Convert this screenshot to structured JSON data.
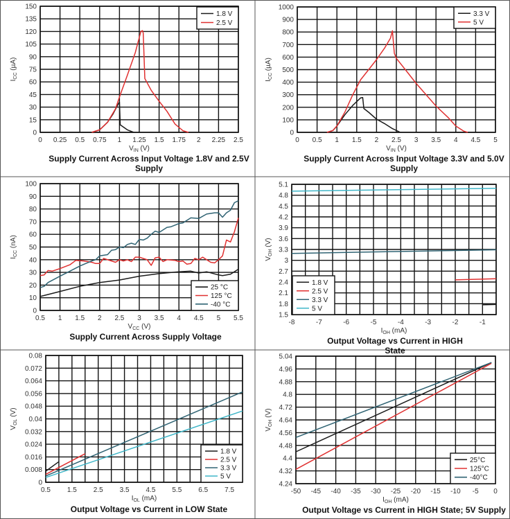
{
  "chart_data": [
    {
      "type": "line",
      "title": "Supply Current Across Input Voltage 1.8V and 2.5V Supply",
      "xlabel": {
        "base": "V",
        "sub": "IN",
        "rest": " (V)"
      },
      "ylabel": {
        "base": "I",
        "sub": "CC",
        "rest": " (µA)"
      },
      "xlim": [
        0,
        2.5
      ],
      "ylim": [
        0,
        150
      ],
      "xticks": [
        "0",
        "0.25",
        "0.5",
        "0.75",
        "1",
        "1.25",
        "1.5",
        "1.75",
        "2",
        "2.25",
        "2.5"
      ],
      "yticks": [
        "0",
        "15",
        "30",
        "45",
        "60",
        "75",
        "90",
        "105",
        "120",
        "135",
        "150"
      ],
      "grid": true,
      "xgrid_step": 0.25,
      "ygrid_step": 15,
      "legend": "top-right",
      "series": [
        {
          "name": "1.8 V",
          "color": "#1a1a1a",
          "points": [
            [
              0,
              0
            ],
            [
              0.65,
              0
            ],
            [
              0.75,
              3
            ],
            [
              0.85,
              12
            ],
            [
              0.92,
              22
            ],
            [
              0.98,
              33
            ],
            [
              1.0,
              36
            ],
            [
              1.01,
              9
            ],
            [
              1.1,
              3
            ],
            [
              1.18,
              0
            ]
          ]
        },
        {
          "name": "2.5 V",
          "color": "#e03030",
          "points": [
            [
              0.65,
              0
            ],
            [
              0.75,
              3
            ],
            [
              0.85,
              12
            ],
            [
              0.95,
              28
            ],
            [
              1.0,
              42
            ],
            [
              1.1,
              68
            ],
            [
              1.2,
              95
            ],
            [
              1.27,
              120
            ],
            [
              1.29,
              121
            ],
            [
              1.3,
              118
            ],
            [
              1.32,
              64
            ],
            [
              1.4,
              50
            ],
            [
              1.5,
              37
            ],
            [
              1.6,
              25
            ],
            [
              1.7,
              10
            ],
            [
              1.8,
              2
            ],
            [
              1.87,
              0
            ]
          ]
        }
      ]
    },
    {
      "type": "line",
      "title": "Supply Current Across Input Voltage 3.3V and 5.0V Supply",
      "xlabel": {
        "base": "V",
        "sub": "IN",
        "rest": " (V)"
      },
      "ylabel": {
        "base": "I",
        "sub": "CC",
        "rest": " (µA)"
      },
      "xlim": [
        0,
        5
      ],
      "ylim": [
        0,
        1000
      ],
      "xticks": [
        "0",
        "0.5",
        "1",
        "1.5",
        "2",
        "2.5",
        "3",
        "3.5",
        "4",
        "4.5",
        "5"
      ],
      "yticks": [
        "0",
        "100",
        "200",
        "300",
        "400",
        "500",
        "600",
        "700",
        "800",
        "900",
        "1000"
      ],
      "grid": true,
      "xgrid_step": 0.5,
      "ygrid_step": 100,
      "legend": "top-right",
      "series": [
        {
          "name": "3.3 V",
          "color": "#1a1a1a",
          "points": [
            [
              0.75,
              0
            ],
            [
              0.9,
              15
            ],
            [
              1.0,
              50
            ],
            [
              1.2,
              140
            ],
            [
              1.4,
              215
            ],
            [
              1.6,
              275
            ],
            [
              1.65,
              278
            ],
            [
              1.68,
              190
            ],
            [
              1.8,
              160
            ],
            [
              2.0,
              105
            ],
            [
              2.2,
              70
            ],
            [
              2.4,
              30
            ],
            [
              2.6,
              0
            ]
          ]
        },
        {
          "name": "5 V",
          "color": "#e03030",
          "points": [
            [
              0.75,
              0
            ],
            [
              0.9,
              15
            ],
            [
              1.0,
              50
            ],
            [
              1.2,
              160
            ],
            [
              1.4,
              300
            ],
            [
              1.6,
              420
            ],
            [
              1.8,
              500
            ],
            [
              2.0,
              580
            ],
            [
              2.2,
              670
            ],
            [
              2.35,
              750
            ],
            [
              2.4,
              810
            ],
            [
              2.45,
              630
            ],
            [
              2.5,
              590
            ],
            [
              2.8,
              470
            ],
            [
              3.0,
              390
            ],
            [
              3.5,
              210
            ],
            [
              3.8,
              120
            ],
            [
              4.0,
              50
            ],
            [
              4.2,
              10
            ],
            [
              4.3,
              0
            ]
          ]
        }
      ]
    },
    {
      "type": "line",
      "title": "Supply Current Across Supply Voltage",
      "xlabel": {
        "base": "V",
        "sub": "CC",
        "rest": " (V)"
      },
      "ylabel": {
        "base": "I",
        "sub": "CC",
        "rest": " (nA)"
      },
      "xlim": [
        0.5,
        5.5
      ],
      "ylim": [
        0,
        100
      ],
      "xticks": [
        "0.5",
        "1",
        "1.5",
        "2",
        "2.5",
        "3",
        "3.5",
        "4",
        "4.5",
        "5",
        "5.5"
      ],
      "yticks": [
        "0",
        "10",
        "20",
        "30",
        "40",
        "50",
        "60",
        "70",
        "80",
        "90",
        "100"
      ],
      "grid": true,
      "xgrid_step": 0.5,
      "ygrid_step": 10,
      "legend": "bottom-right",
      "series": [
        {
          "name": "25 °C",
          "color": "#1a1a1a",
          "points": [
            [
              0.5,
              11
            ],
            [
              1,
              15
            ],
            [
              1.5,
              19
            ],
            [
              2,
              22
            ],
            [
              2.5,
              24
            ],
            [
              3,
              27
            ],
            [
              3.5,
              29
            ],
            [
              4,
              30.5
            ],
            [
              4.3,
              31
            ],
            [
              4.5,
              29.5
            ],
            [
              4.7,
              30.5
            ],
            [
              5,
              28
            ],
            [
              5.1,
              27.5
            ],
            [
              5.3,
              28.5
            ],
            [
              5.5,
              32.5
            ]
          ]
        },
        {
          "name": "125 °C",
          "color": "#e03030",
          "points": [
            [
              0.5,
              27.5
            ],
            [
              0.6,
              28
            ],
            [
              0.7,
              31.5
            ],
            [
              0.8,
              31
            ],
            [
              1,
              33
            ],
            [
              1.25,
              36
            ],
            [
              1.4,
              39.5
            ],
            [
              1.6,
              39
            ],
            [
              1.8,
              38
            ],
            [
              1.9,
              37
            ],
            [
              2.0,
              37
            ],
            [
              2.1,
              41
            ],
            [
              2.3,
              39
            ],
            [
              2.4,
              38
            ],
            [
              2.5,
              40
            ],
            [
              2.6,
              39
            ],
            [
              2.7,
              40
            ],
            [
              2.8,
              38.5
            ],
            [
              2.9,
              42
            ],
            [
              3.0,
              42
            ],
            [
              3.1,
              41
            ],
            [
              3.2,
              40
            ],
            [
              3.3,
              35.5
            ],
            [
              3.4,
              41.5
            ],
            [
              3.5,
              42
            ],
            [
              3.6,
              38.5
            ],
            [
              3.7,
              40
            ],
            [
              3.9,
              39.5
            ],
            [
              4.0,
              38.5
            ],
            [
              4.1,
              39
            ],
            [
              4.2,
              36.5
            ],
            [
              4.3,
              37
            ],
            [
              4.4,
              41
            ],
            [
              4.5,
              40
            ],
            [
              4.6,
              42
            ],
            [
              4.8,
              38
            ],
            [
              4.9,
              37.5
            ],
            [
              5.0,
              40
            ],
            [
              5.1,
              43
            ],
            [
              5.2,
              55.5
            ],
            [
              5.3,
              54
            ],
            [
              5.4,
              62
            ],
            [
              5.5,
              73
            ]
          ]
        },
        {
          "name": "-40 °C",
          "color": "#2f6373",
          "points": [
            [
              0.5,
              18
            ],
            [
              0.6,
              19
            ],
            [
              0.7,
              22
            ],
            [
              1.0,
              27
            ],
            [
              1.25,
              31
            ],
            [
              1.5,
              35
            ],
            [
              1.8,
              39
            ],
            [
              1.9,
              40
            ],
            [
              2.0,
              43
            ],
            [
              2.2,
              44
            ],
            [
              2.3,
              47.5
            ],
            [
              2.4,
              48
            ],
            [
              2.5,
              50
            ],
            [
              2.6,
              49.5
            ],
            [
              2.7,
              52
            ],
            [
              2.8,
              53
            ],
            [
              2.9,
              52
            ],
            [
              3.0,
              56
            ],
            [
              3.1,
              55.5
            ],
            [
              3.2,
              57
            ],
            [
              3.3,
              60
            ],
            [
              3.4,
              62.5
            ],
            [
              3.5,
              61.5
            ],
            [
              3.7,
              65.5
            ],
            [
              3.8,
              66
            ],
            [
              4.0,
              68.5
            ],
            [
              4.1,
              69
            ],
            [
              4.3,
              73
            ],
            [
              4.5,
              72.5
            ],
            [
              4.7,
              76
            ],
            [
              4.9,
              77
            ],
            [
              5.0,
              77
            ],
            [
              5.1,
              73.5
            ],
            [
              5.2,
              77
            ],
            [
              5.3,
              79
            ],
            [
              5.4,
              85
            ],
            [
              5.5,
              86.5
            ]
          ]
        }
      ]
    },
    {
      "type": "line",
      "title": "Output Voltage vs Current in HIGH State",
      "xlabel": {
        "base": "I",
        "sub": "OH",
        "rest": " (mA)"
      },
      "ylabel": {
        "base": "V",
        "sub": "OH",
        "rest": " (V)"
      },
      "xlim": [
        -8,
        -0.5
      ],
      "ylim": [
        1.5,
        5.1
      ],
      "xticks": [
        "-8",
        "-7",
        "-6",
        "-5",
        "-4",
        "-3",
        "-2",
        "-1"
      ],
      "xtick_values": [
        -8,
        -7,
        -6,
        -5,
        -4,
        -3,
        -2,
        -1
      ],
      "yticks": [
        "1.5",
        "1.8",
        "2.1",
        "2.4",
        "2.7",
        "3",
        "3.3",
        "3.6",
        "3.9",
        "4.2",
        "4.5",
        "4.8",
        "5.1"
      ],
      "grid": true,
      "xgrid_step": 0.5,
      "ygrid_step": 0.3,
      "legend": "bottom-left",
      "series": [
        {
          "name": "1.8 V",
          "color": "#1a1a1a",
          "points": [
            [
              -1,
              1.77
            ],
            [
              -0.5,
              1.78
            ]
          ]
        },
        {
          "name": "2.5 V",
          "color": "#e03030",
          "points": [
            [
              -2,
              2.46
            ],
            [
              -0.5,
              2.49
            ]
          ]
        },
        {
          "name": "3.3 V",
          "color": "#2f6373",
          "points": [
            [
              -8,
              3.19
            ],
            [
              -0.5,
              3.29
            ]
          ]
        },
        {
          "name": "5 V",
          "color": "#3fb6c8",
          "points": [
            [
              -8,
              4.91
            ],
            [
              -0.5,
              4.99
            ]
          ]
        }
      ]
    },
    {
      "type": "line",
      "title": "Output Voltage vs Current in LOW State",
      "xlabel": {
        "base": "I",
        "sub": "OL",
        "rest": " (mA)"
      },
      "ylabel": {
        "base": "V",
        "sub": "OL",
        "rest": " (V)"
      },
      "xlim": [
        0.5,
        8
      ],
      "ylim": [
        0,
        0.08
      ],
      "xticks": [
        "0.5",
        "1.5",
        "2.5",
        "3.5",
        "4.5",
        "5.5",
        "6.5",
        "7.5"
      ],
      "xtick_values": [
        0.5,
        1.5,
        2.5,
        3.5,
        4.5,
        5.5,
        6.5,
        7.5
      ],
      "yticks": [
        "0",
        "0.008",
        "0.016",
        "0.024",
        "0.032",
        "0.04",
        "0.048",
        "0.056",
        "0.064",
        "0.072",
        "0.08"
      ],
      "grid": true,
      "xgrid_step": 0.5,
      "ygrid_step": 0.008,
      "legend": "bottom-right",
      "series": [
        {
          "name": "1.8 V",
          "color": "#1a1a1a",
          "points": [
            [
              0.5,
              0.007
            ],
            [
              1,
              0.013
            ]
          ]
        },
        {
          "name": "2.5 V",
          "color": "#e03030",
          "points": [
            [
              0.5,
              0.005
            ],
            [
              2,
              0.018
            ]
          ]
        },
        {
          "name": "3.3 V",
          "color": "#2f6373",
          "points": [
            [
              0.5,
              0.004
            ],
            [
              8,
              0.057
            ]
          ]
        },
        {
          "name": "5 V",
          "color": "#3fb6c8",
          "points": [
            [
              0.5,
              0.003
            ],
            [
              8,
              0.045
            ]
          ]
        }
      ]
    },
    {
      "type": "line",
      "title": "Output Voltage vs Current in HIGH State; 5V Supply",
      "xlabel": {
        "base": "I",
        "sub": "OH",
        "rest": " (mA)"
      },
      "ylabel": {
        "base": "V",
        "sub": "OH",
        "rest": " (V)"
      },
      "xlim": [
        -50,
        0
      ],
      "ylim": [
        4.24,
        5.04
      ],
      "xticks": [
        "-50",
        "-45",
        "-40",
        "-35",
        "-30",
        "-25",
        "-20",
        "-15",
        "-10",
        "-5",
        "0"
      ],
      "yticks": [
        "4.24",
        "4.32",
        "4.4",
        "4.48",
        "4.56",
        "4.64",
        "4.72",
        "4.8",
        "4.88",
        "4.96",
        "5.04"
      ],
      "grid": true,
      "xgrid_step": 5,
      "ygrid_step": 0.08,
      "legend": "bottom-right",
      "series": [
        {
          "name": "25°C",
          "color": "#1a1a1a",
          "points": [
            [
              -50,
              4.44
            ],
            [
              -1,
              5.0
            ]
          ]
        },
        {
          "name": "125°C",
          "color": "#e03030",
          "points": [
            [
              -50,
              4.33
            ],
            [
              -1,
              4.995
            ]
          ]
        },
        {
          "name": "-40°C",
          "color": "#2f6373",
          "points": [
            [
              -50,
              4.53
            ],
            [
              -1,
              5.0
            ]
          ]
        }
      ]
    }
  ]
}
